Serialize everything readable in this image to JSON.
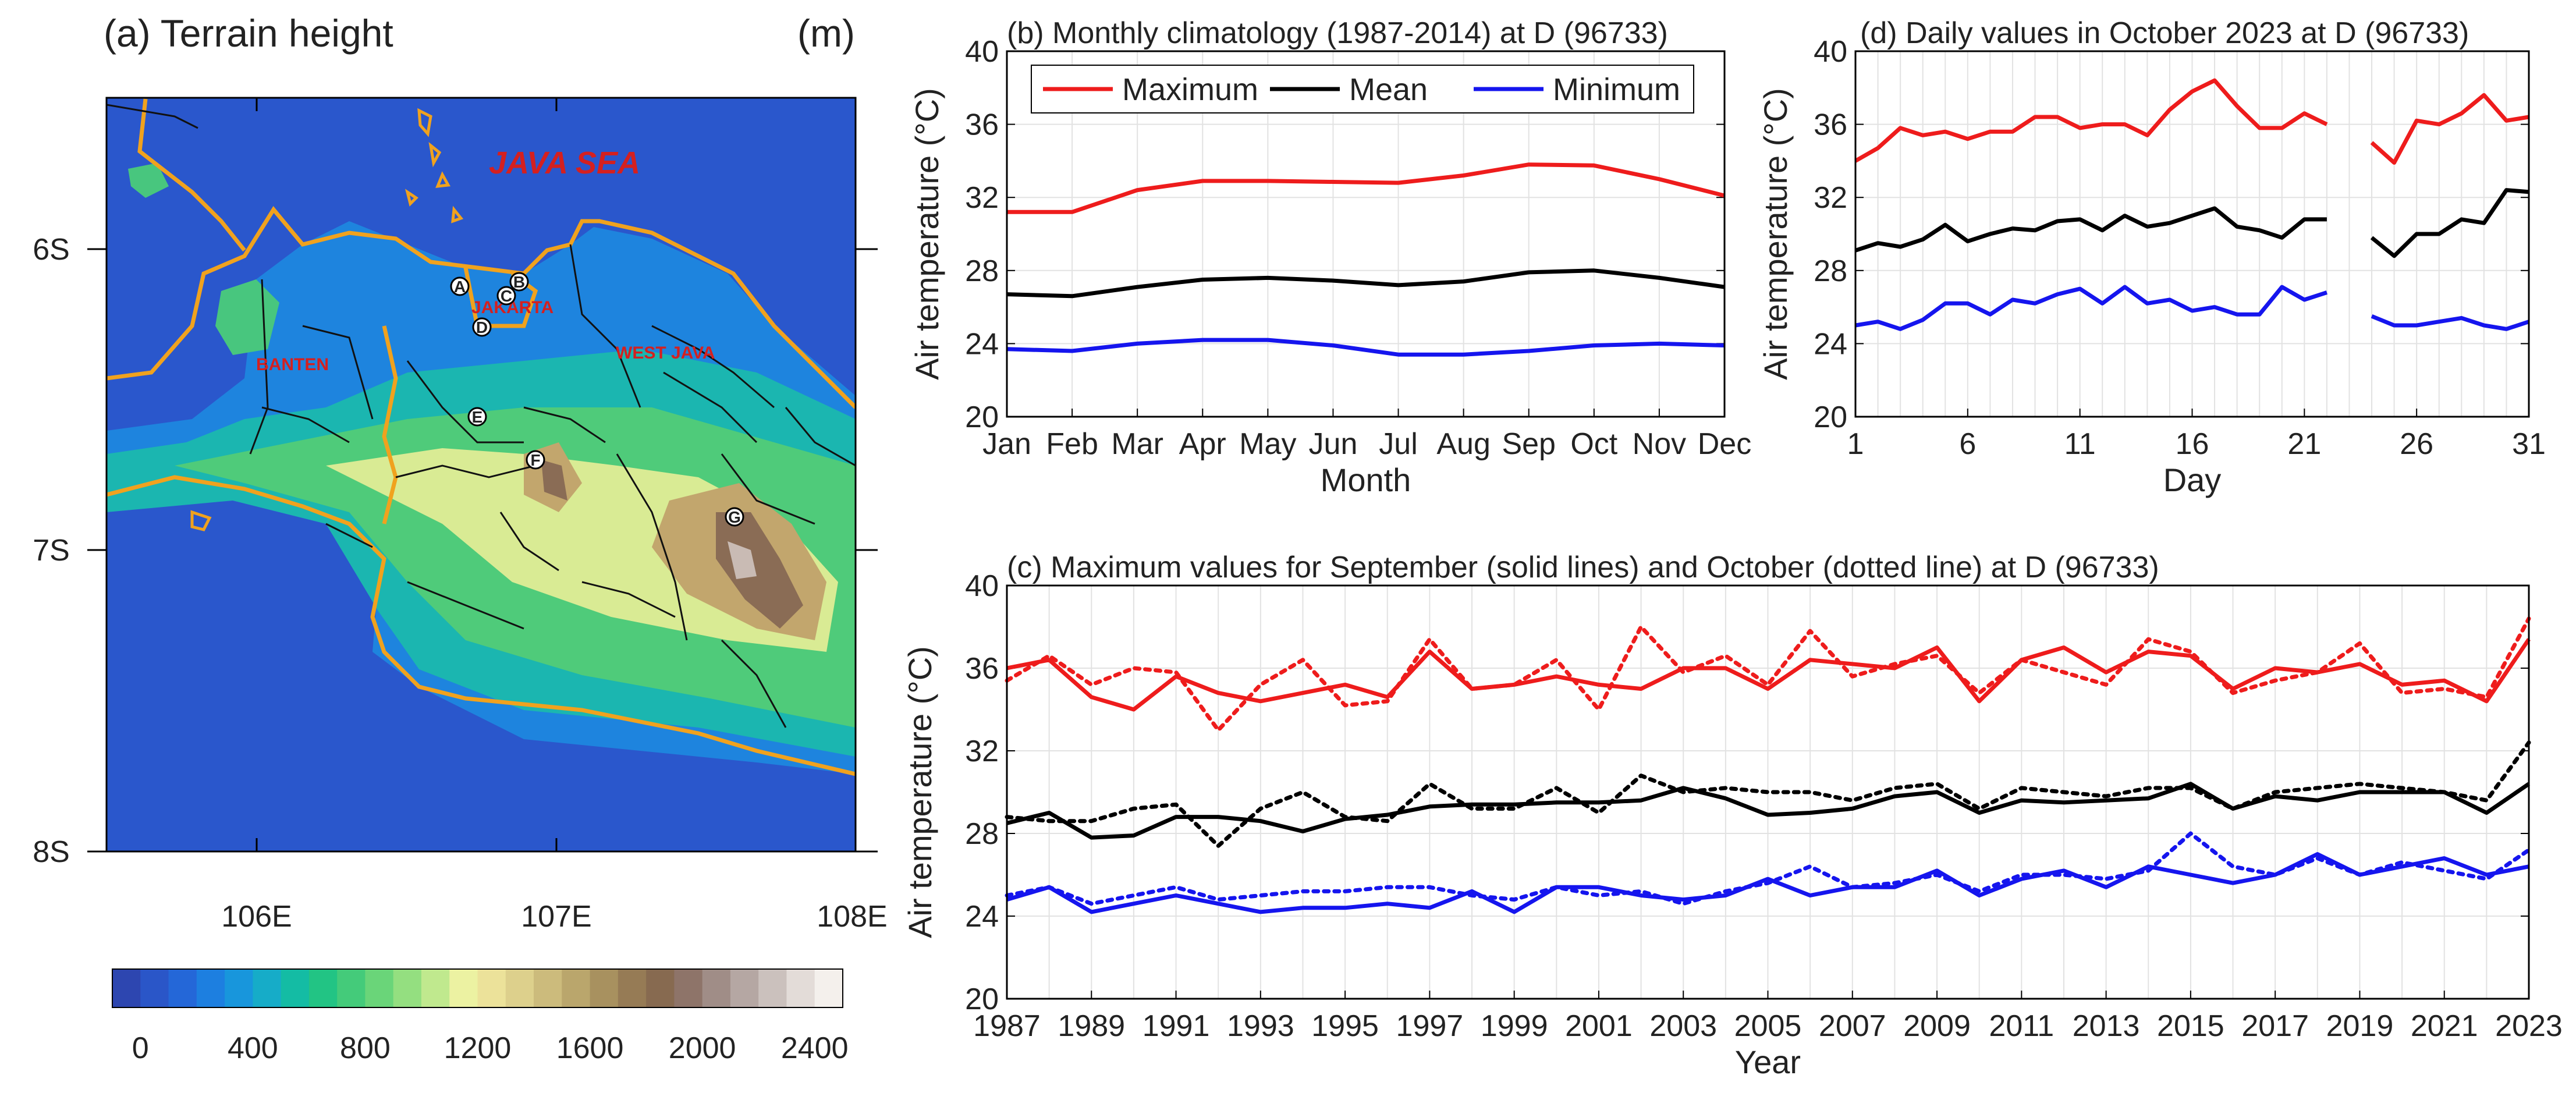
{
  "panel_a": {
    "title": "(a) Terrain height",
    "unit": "(m)",
    "lon_ticks": [
      "106E",
      "107E",
      "108E"
    ],
    "lat_ticks": [
      "6S",
      "7S",
      "8S"
    ],
    "labels": {
      "sea": "JAVA SEA",
      "banten": "BANTEN",
      "jakarta": "JAKARTA",
      "west_java": "WEST JAVA"
    },
    "stations": [
      "A",
      "B",
      "C",
      "D",
      "E",
      "F",
      "G"
    ],
    "colorbar_ticks": [
      "0",
      "400",
      "800",
      "1200",
      "1600",
      "2000",
      "2400"
    ],
    "colorbar_colors": [
      "#2d46b0",
      "#2a56c8",
      "#2467d8",
      "#1d7fe0",
      "#1896dc",
      "#16acc8",
      "#14bca4",
      "#22c484",
      "#44cb7a",
      "#6ad579",
      "#94df80",
      "#c0e98e",
      "#ecf2a2",
      "#ece29a",
      "#ddd08c",
      "#ccbb7c",
      "#baa66c",
      "#a8915f",
      "#967b55",
      "#876a50",
      "#8e7469",
      "#a08d87",
      "#b5a7a3",
      "#cbc1bd",
      "#e3dcd8",
      "#f4f0ec"
    ]
  },
  "chart_data": [
    {
      "id": "b",
      "type": "line",
      "title": "(b) Monthly climatology (1987-2014) at D (96733)",
      "xlabel": "Month",
      "ylabel": "Air temperature (°C)",
      "categories": [
        "Jan",
        "Feb",
        "Mar",
        "Apr",
        "May",
        "Jun",
        "Jul",
        "Aug",
        "Sep",
        "Oct",
        "Nov",
        "Dec"
      ],
      "ylim": [
        20,
        40
      ],
      "yticks": [
        "20",
        "24",
        "28",
        "32",
        "36",
        "40"
      ],
      "legend_position": "top",
      "series": [
        {
          "name": "Maximum",
          "color": "#ee1c1c",
          "values": [
            31.2,
            31.2,
            32.4,
            32.9,
            32.9,
            32.85,
            32.8,
            33.2,
            33.8,
            33.75,
            33.0,
            32.1
          ]
        },
        {
          "name": "Mean",
          "color": "#000000",
          "values": [
            26.7,
            26.6,
            27.1,
            27.5,
            27.6,
            27.45,
            27.2,
            27.4,
            27.9,
            28.0,
            27.6,
            27.1
          ]
        },
        {
          "name": "Minimum",
          "color": "#1515ee",
          "values": [
            23.7,
            23.6,
            24.0,
            24.2,
            24.2,
            23.9,
            23.4,
            23.4,
            23.6,
            23.9,
            24.0,
            23.9
          ]
        }
      ]
    },
    {
      "id": "d",
      "type": "line",
      "title": "(d) Daily values in October 2023 at D (96733)",
      "xlabel": "Day",
      "ylabel": "Air temperature (°C)",
      "xlim": [
        1,
        31
      ],
      "xticks": [
        "1",
        "6",
        "11",
        "16",
        "21",
        "26",
        "31"
      ],
      "ylim": [
        20,
        40
      ],
      "yticks": [
        "20",
        "24",
        "28",
        "32",
        "36",
        "40"
      ],
      "series": [
        {
          "name": "Maximum",
          "color": "#ee1c1c",
          "values": [
            34.0,
            34.7,
            35.8,
            35.4,
            35.6,
            35.2,
            35.6,
            35.6,
            36.4,
            36.4,
            35.8,
            36.0,
            36.0,
            35.4,
            36.8,
            37.8,
            38.4,
            37.0,
            35.8,
            35.8,
            36.6,
            36.0,
            null,
            35.0,
            33.9,
            36.2,
            36.0,
            36.6,
            37.6,
            36.2,
            36.4
          ]
        },
        {
          "name": "Mean",
          "color": "#000000",
          "values": [
            29.1,
            29.5,
            29.3,
            29.7,
            30.5,
            29.6,
            30.0,
            30.3,
            30.2,
            30.7,
            30.8,
            30.2,
            31.0,
            30.4,
            30.6,
            31.0,
            31.4,
            30.4,
            30.2,
            29.8,
            30.8,
            30.8,
            null,
            29.8,
            28.8,
            30.0,
            30.0,
            30.8,
            30.6,
            32.4,
            32.3
          ]
        },
        {
          "name": "Minimum",
          "color": "#1515ee",
          "values": [
            25.0,
            25.2,
            24.8,
            25.3,
            26.2,
            26.2,
            25.6,
            26.4,
            26.2,
            26.7,
            27.0,
            26.2,
            27.1,
            26.2,
            26.4,
            25.8,
            26.0,
            25.6,
            25.6,
            27.1,
            26.4,
            26.8,
            null,
            25.5,
            25.0,
            25.0,
            25.2,
            25.4,
            25.0,
            24.8,
            25.2
          ]
        }
      ]
    },
    {
      "id": "c",
      "type": "line",
      "title": "(c) Maximum values for September (solid lines) and October (dotted line) at D (96733)",
      "xlabel": "Year",
      "ylabel": "Air temperature (°C)",
      "xlim": [
        1987,
        2023
      ],
      "xticks": [
        "1987",
        "1989",
        "1991",
        "1993",
        "1995",
        "1997",
        "1999",
        "2001",
        "2003",
        "2005",
        "2007",
        "2009",
        "2011",
        "2013",
        "2015",
        "2017",
        "2019",
        "2021",
        "2023"
      ],
      "ylim": [
        20,
        40
      ],
      "yticks": [
        "20",
        "24",
        "28",
        "32",
        "36",
        "40"
      ],
      "series": [
        {
          "name": "Maximum September",
          "color": "#ee1c1c",
          "style": "solid",
          "values": [
            36.0,
            36.4,
            34.6,
            34.0,
            35.6,
            34.8,
            34.4,
            34.8,
            35.2,
            34.6,
            36.8,
            35.0,
            35.2,
            35.6,
            35.2,
            35.0,
            36.0,
            36.0,
            35.0,
            36.4,
            36.2,
            36.0,
            37.0,
            34.4,
            36.4,
            37.0,
            35.8,
            36.8,
            36.6,
            35.0,
            36.0,
            35.8,
            36.2,
            35.2,
            35.4,
            34.4,
            37.4
          ]
        },
        {
          "name": "Maximum October",
          "color": "#ee1c1c",
          "style": "dotted",
          "values": [
            35.4,
            36.6,
            35.2,
            36.0,
            35.8,
            33.0,
            35.2,
            36.4,
            34.2,
            34.4,
            37.4,
            35.0,
            35.2,
            36.4,
            34.0,
            38.0,
            35.8,
            36.6,
            35.2,
            37.8,
            35.6,
            36.2,
            36.6,
            34.8,
            36.4,
            35.8,
            35.2,
            37.4,
            36.8,
            34.8,
            35.4,
            35.8,
            37.2,
            34.8,
            35.0,
            34.6,
            38.4
          ]
        },
        {
          "name": "Mean September",
          "color": "#000000",
          "style": "solid",
          "values": [
            28.5,
            29.0,
            27.8,
            27.9,
            28.8,
            28.8,
            28.6,
            28.1,
            28.7,
            28.9,
            29.3,
            29.4,
            29.4,
            29.5,
            29.5,
            29.6,
            30.2,
            29.7,
            28.9,
            29.0,
            29.2,
            29.8,
            30.0,
            29.0,
            29.6,
            29.5,
            29.6,
            29.7,
            30.4,
            29.2,
            29.8,
            29.6,
            30.0,
            30.0,
            30.0,
            29.0,
            30.4
          ]
        },
        {
          "name": "Mean October",
          "color": "#000000",
          "style": "dotted",
          "values": [
            28.8,
            28.6,
            28.6,
            29.2,
            29.4,
            27.4,
            29.2,
            30.0,
            28.8,
            28.6,
            30.4,
            29.2,
            29.2,
            30.2,
            29.0,
            30.8,
            30.0,
            30.2,
            30.0,
            30.0,
            29.6,
            30.2,
            30.4,
            29.2,
            30.2,
            30.0,
            29.8,
            30.2,
            30.2,
            29.2,
            30.0,
            30.2,
            30.4,
            30.2,
            30.0,
            29.6,
            32.4
          ]
        },
        {
          "name": "Minimum September",
          "color": "#1515ee",
          "style": "solid",
          "values": [
            24.8,
            25.4,
            24.2,
            24.6,
            25.0,
            24.6,
            24.2,
            24.4,
            24.4,
            24.6,
            24.4,
            25.2,
            24.2,
            25.4,
            25.4,
            25.0,
            24.8,
            25.0,
            25.8,
            25.0,
            25.4,
            25.4,
            26.2,
            25.0,
            25.8,
            26.2,
            25.4,
            26.4,
            26.0,
            25.6,
            26.0,
            27.0,
            26.0,
            26.4,
            26.8,
            26.0,
            26.4
          ]
        },
        {
          "name": "Minimum October",
          "color": "#1515ee",
          "style": "dotted",
          "values": [
            25.0,
            25.4,
            24.6,
            25.0,
            25.4,
            24.8,
            25.0,
            25.2,
            25.2,
            25.4,
            25.4,
            25.0,
            24.8,
            25.4,
            25.0,
            25.2,
            24.6,
            25.2,
            25.6,
            26.4,
            25.4,
            25.6,
            26.0,
            25.2,
            26.0,
            26.0,
            25.8,
            26.2,
            28.0,
            26.4,
            26.0,
            26.8,
            26.0,
            26.6,
            26.2,
            25.8,
            27.2
          ]
        }
      ]
    }
  ]
}
